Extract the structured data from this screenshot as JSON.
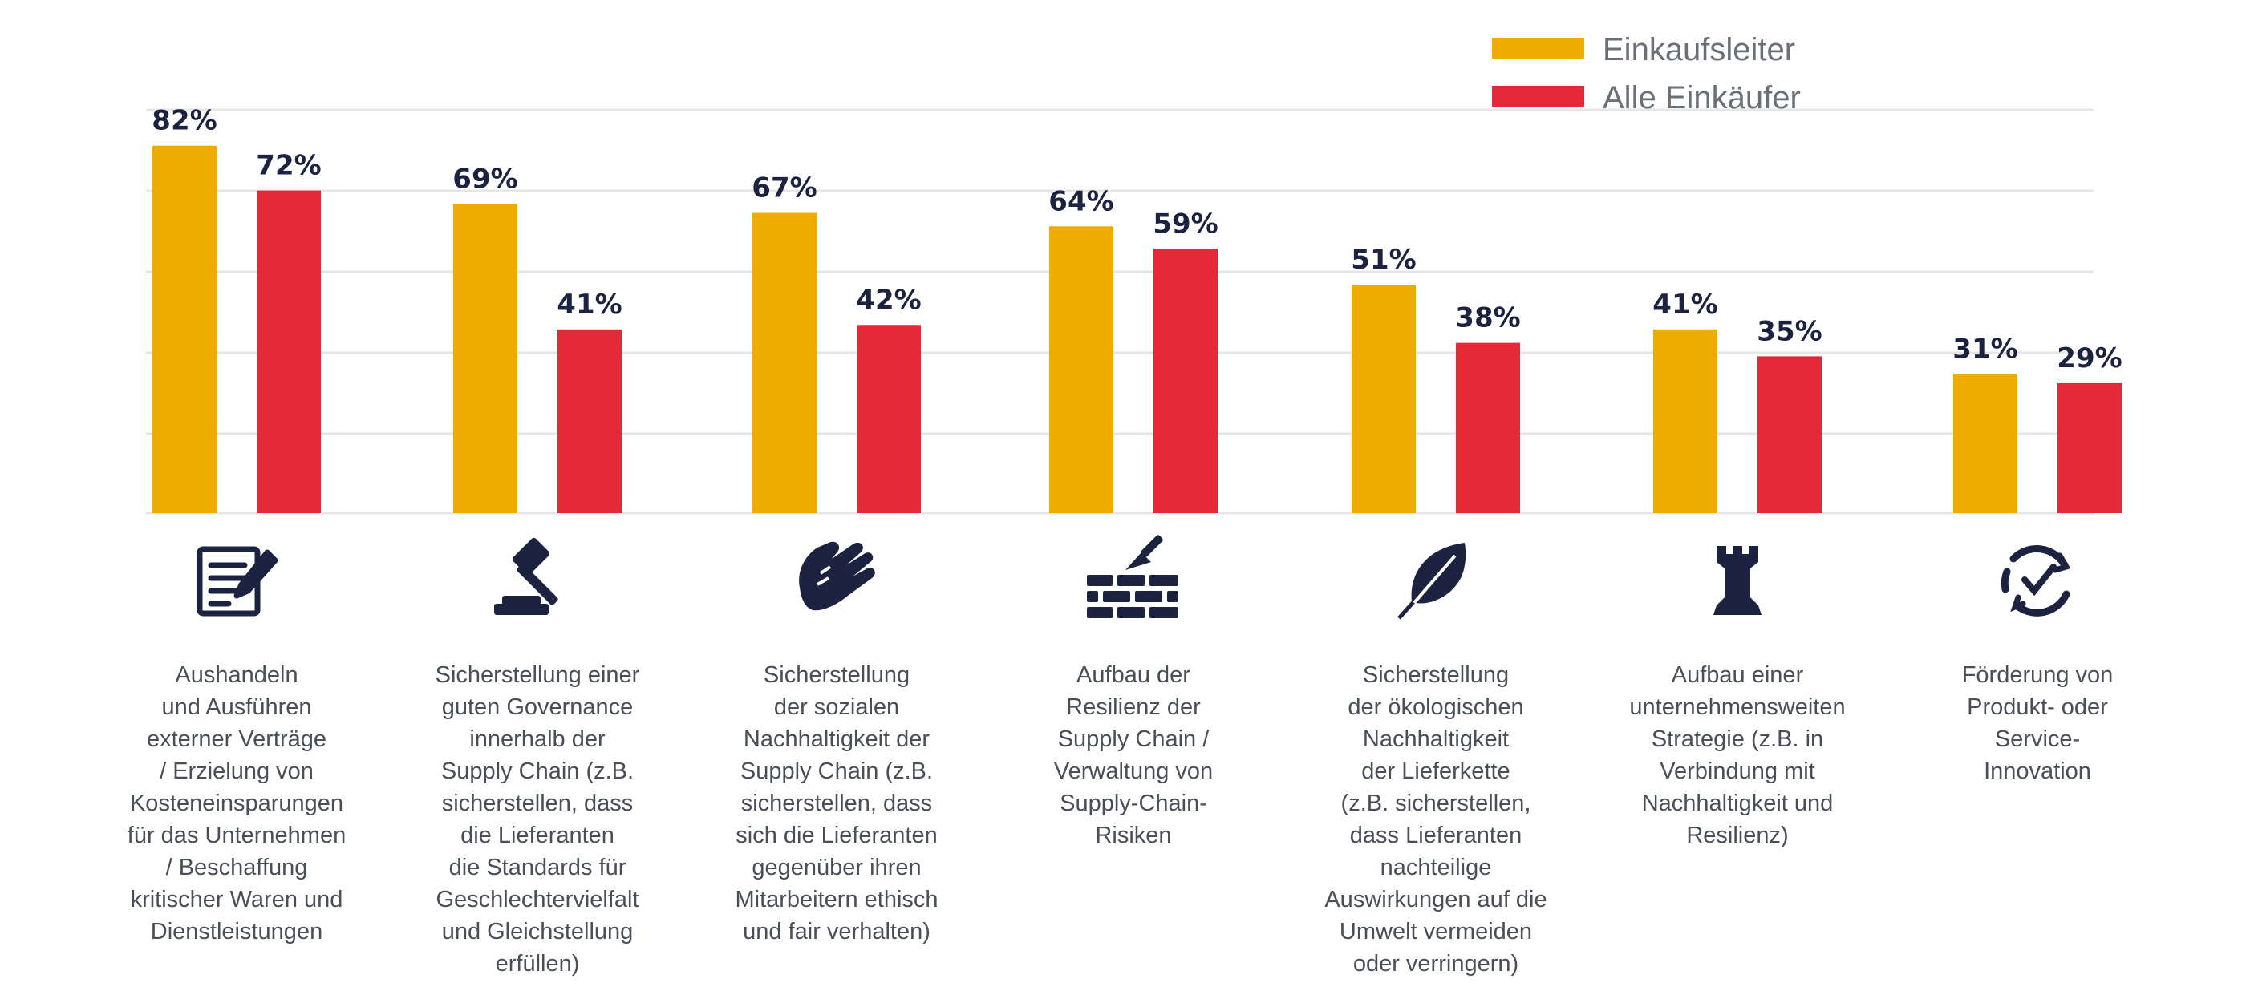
{
  "colors": {
    "leaders": "#F0AB00",
    "all": "#E42938",
    "grid": "#e6e6e6",
    "text": "#1c2340",
    "icon": "#1c2340"
  },
  "legend": [
    {
      "name": "Einkaufsleiter",
      "color": "#F0AB00"
    },
    {
      "name": "Alle Einkäufer",
      "color": "#E42938"
    }
  ],
  "chart_data": {
    "type": "bar",
    "grid": true,
    "legend_position": "top-right",
    "ylim": [
      0,
      100
    ],
    "series": [
      {
        "name": "Einkaufsleiter",
        "values": [
          82,
          69,
          67,
          64,
          51,
          41,
          31
        ],
        "labels": [
          "82%",
          "69%",
          "67%",
          "64%",
          "51%",
          "41%",
          "31%"
        ]
      },
      {
        "name": "Alle Einkäufer",
        "values": [
          72,
          41,
          42,
          59,
          38,
          35,
          29
        ],
        "labels": [
          "72%",
          "41%",
          "42%",
          "59%",
          "38%",
          "35%",
          "29%"
        ]
      }
    ],
    "categories": [
      {
        "icon": "contract-icon",
        "lines": [
          "Aushandeln",
          "und Ausführen",
          "externer Verträge",
          "/ Erzielung von",
          "Kosteneinsparungen",
          "für das Unternehmen",
          "/ Beschaffung",
          "kritischer Waren und",
          "Dienstleistungen"
        ]
      },
      {
        "icon": "gavel-icon",
        "lines": [
          "Sicherstellung einer",
          "guten Governance",
          "innerhalb der",
          "Supply Chain (z.B.",
          "sicherstellen, dass",
          "die Lieferanten",
          "die Standards für",
          "Geschlechtervielfalt",
          "und Gleichstellung",
          "erfüllen)"
        ]
      },
      {
        "icon": "handshake-icon",
        "lines": [
          "Sicherstellung",
          "der sozialen",
          "Nachhaltigkeit der",
          "Supply Chain (z.B.",
          "sicherstellen, dass",
          "sich die Lieferanten",
          "gegenüber ihren",
          "Mitarbeitern ethisch",
          "und fair verhalten)"
        ]
      },
      {
        "icon": "brick-wall-icon",
        "lines": [
          "Aufbau der",
          "Resilienz der",
          "Supply Chain /",
          "Verwaltung von",
          "Supply-Chain-",
          "Risiken"
        ]
      },
      {
        "icon": "leaf-icon",
        "lines": [
          "Sicherstellung",
          "der ökologischen",
          "Nachhaltigkeit",
          "der Lieferkette",
          "(z.B. sicherstellen,",
          "dass Lieferanten",
          "nachteilige",
          "Auswirkungen auf die",
          "Umwelt vermeiden",
          "oder verringern)"
        ]
      },
      {
        "icon": "chess-rook-icon",
        "lines": [
          "Aufbau einer",
          "unternehmensweiten",
          "Strategie (z.B. in",
          "Verbindung mit",
          "Nachhaltigkeit und",
          "Resilienz)"
        ]
      },
      {
        "icon": "cycle-check-icon",
        "lines": [
          "Förderung von",
          "Produkt- oder",
          "Service-",
          "Innovation"
        ]
      }
    ]
  }
}
